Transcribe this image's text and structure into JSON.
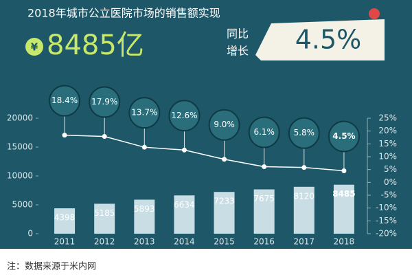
{
  "chart_data": {
    "type": "bar",
    "title": "2018年城市公立医院市场的销售额实现",
    "headline_symbol": "¥",
    "headline_value": "8485亿",
    "growth_label": [
      "同比",
      "增长"
    ],
    "growth_value": "4.5%",
    "note": "注：数据来源于米内网",
    "categories": [
      "2011",
      "2012",
      "2013",
      "2014",
      "2015",
      "2016",
      "2017",
      "2018"
    ],
    "series": [
      {
        "type": "bar",
        "color": "#c9dde5",
        "values": [
          4398,
          5185,
          5893,
          6634,
          7233,
          7675,
          8120,
          8485
        ]
      },
      {
        "type": "line",
        "axis": "y2",
        "color": "#ffffff",
        "values": [
          18.4,
          17.9,
          13.7,
          12.6,
          9.0,
          6.1,
          5.8,
          4.5
        ],
        "value_labels": [
          "18.4%",
          "17.9%",
          "13.7%",
          "12.6%",
          "9.0%",
          "6.1%",
          "5.8%",
          "4.5%"
        ]
      }
    ],
    "ylim": [
      0,
      20000
    ],
    "yticks": [
      0,
      5000,
      10000,
      15000,
      20000
    ],
    "y2lim": [
      -20,
      25
    ],
    "y2ticks": [
      {
        "value": -20,
        "label": "-20%"
      },
      {
        "value": -15,
        "label": "-15%"
      },
      {
        "value": -10,
        "label": "-10%"
      },
      {
        "value": -5,
        "label": "-5%"
      },
      {
        "value": 0,
        "label": "0%"
      },
      {
        "value": 5,
        "label": "5%"
      },
      {
        "value": 10,
        "label": "10%"
      },
      {
        "value": 15,
        "label": "15%"
      },
      {
        "value": 20,
        "label": "20%"
      },
      {
        "value": 25,
        "label": "25%"
      }
    ]
  }
}
